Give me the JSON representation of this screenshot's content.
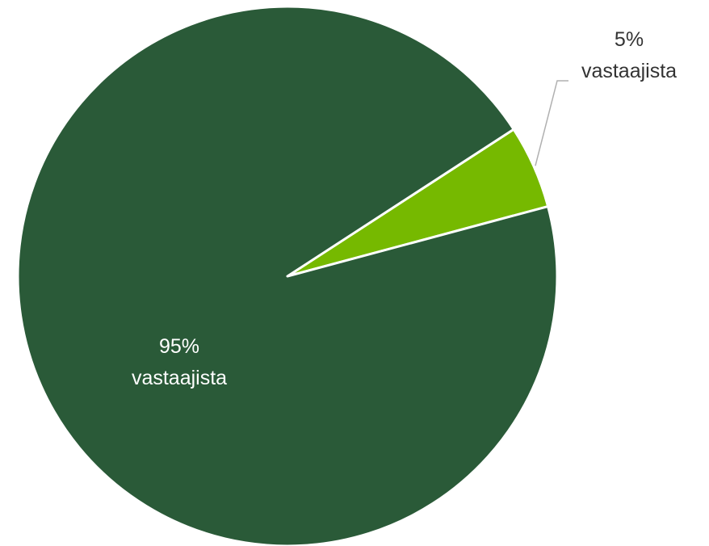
{
  "chart_data": {
    "type": "pie",
    "slices": [
      {
        "value": 5,
        "label_lines": [
          "5%",
          "vastaajista"
        ],
        "color": "#76b900",
        "label_color": "#333333",
        "label_placement": "outside-top-right"
      },
      {
        "value": 95,
        "label_lines": [
          "95%",
          "vastaajista"
        ],
        "color": "#2a5a38",
        "label_color": "#ffffff",
        "label_placement": "inside"
      }
    ],
    "start_angle_deg": 57,
    "slice_border_color": "#ffffff",
    "leader_line_color": "#b0b0b0"
  }
}
